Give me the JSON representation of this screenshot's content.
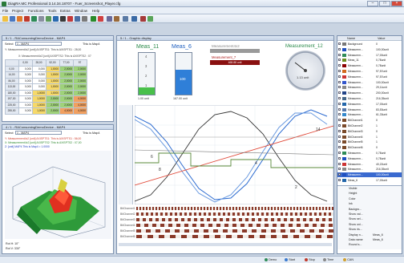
{
  "window": {
    "title": "DiagRA MC Professional 3.14.34.18707 - Fuer_Screenshot_Player.cfg"
  },
  "menu": [
    "File",
    "Project",
    "Functions",
    "Tools",
    "Extras",
    "Window",
    "Help"
  ],
  "work_page": "1 - Work page",
  "panel1": {
    "title": "5 / 1 - RAConsumingDemoDevice - MAP4",
    "select_label": "Select",
    "select_value": "1 - MAP4",
    "this_is": "This is Map4",
    "y_line": "Y: Measurement4x2 [unit] AXISPTS1: This is AXISPTS1 : 28,00",
    "x_line": "X: Measurement4x2 [unit] AXISPTS2: This is AXISPTS2 : 07",
    "header": [
      "",
      "0,00",
      "28,00",
      "52,00",
      "77,00",
      "97"
    ],
    "rows": [
      [
        "0,00",
        "0,000",
        "0,000",
        "1,0000",
        "2,0000",
        "2,0000"
      ],
      [
        "14,00",
        "0,000",
        "0,000",
        "1,0000",
        "2,0000",
        "2,0000"
      ],
      [
        "84,00",
        "0,000",
        "0,000",
        "1,0000",
        "2,0000",
        "2,0000"
      ],
      [
        "113,00",
        "0,000",
        "0,000",
        "1,0000",
        "2,0000",
        "2,0000"
      ],
      [
        "180,00",
        "0,000",
        "1,0000",
        "1,0000",
        "2,0000",
        "2,0000"
      ],
      [
        "197,00",
        "0,000",
        "1,0000",
        "2,0000",
        "2,0000",
        "4,0000"
      ],
      [
        "225,00",
        "0,000",
        "1,0000",
        "2,0000",
        "2,0000",
        "4,0000"
      ],
      [
        "255,00",
        "0,000",
        "1,0000",
        "2,0000",
        "4,0000",
        "4,0000"
      ]
    ]
  },
  "panel2": {
    "title": "4 / 1 - RAConsumingDemoDevice - MAP4",
    "select_label": "Select",
    "select_value": "1 - MAP4",
    "this_is": "This is Map4",
    "legend1": "Y: Measurement4x2 [unit] AXISPTS1: This is AXISPTS1 : 56,00",
    "legend2": "X: Measurement4x2 [unit] AXISPTS2: This is AXISPTS2 : 07,00",
    "legend3": "Z: [unit] MAP4 This is Map4 = 1.0000",
    "rot_h": "Rot H: 10°",
    "rot_v": "Rot V: 330°"
  },
  "graphic": {
    "title": "5 / 1 - Graphic display",
    "meas11": {
      "label": "Meas_11",
      "unit": "1.00 unit",
      "scale": [
        "4",
        "3",
        "2",
        "1"
      ],
      "fill": 0.17
    },
    "meas6": {
      "label": "Meas_6",
      "value": "100",
      "unit": "167.00 unit",
      "fill": 0.6
    },
    "meas4x2": {
      "label": "Measurement4x2",
      "value": "1"
    },
    "meas7": {
      "label": "Measurement_7",
      "value": "468.88 unit"
    },
    "meas12": {
      "label": "Measurement_12",
      "value": "1.13 unit"
    },
    "chart_nums": [
      "14",
      "8",
      "6",
      "4",
      "2"
    ],
    "bits": [
      "BitChannel1",
      "BitChannel2",
      "BitChannel3",
      "BitChannel4",
      "BitChannel5",
      "BitChannel6"
    ]
  },
  "signals": {
    "headers": [
      "Name",
      "Value"
    ],
    "rows": [
      {
        "name": "Background",
        "value": "0",
        "color": "#777777"
      },
      {
        "name": "Measurem...",
        "value": "100,00unit",
        "color": "#1f4fbf"
      },
      {
        "name": "Measurem...",
        "value": "17,00unit",
        "color": "#2e8b57"
      },
      {
        "name": "Meas_11",
        "value": "0,78unit",
        "color": "#6b8e23"
      },
      {
        "name": "Measurem...",
        "value": "0,78unit",
        "color": "#8b0000"
      },
      {
        "name": "Measurem...",
        "value": "97,57unit",
        "color": "#d2691e"
      },
      {
        "name": "Measurem...",
        "value": "97,57unit",
        "color": "#cc3333"
      },
      {
        "name": "Measurem...",
        "value": "100,00unit",
        "color": "#3355cc"
      },
      {
        "name": "Measurem...",
        "value": "29,11unit",
        "color": "#888888"
      },
      {
        "name": "Measurem...",
        "value": "200,00unit",
        "color": "#224488"
      },
      {
        "name": "Measurem...",
        "value": "216,35unit",
        "color": "#446688"
      },
      {
        "name": "Measurem...",
        "value": "17,00unit",
        "color": "#2266aa"
      },
      {
        "name": "Measurem...",
        "value": "83,53unit",
        "color": "#5577aa"
      },
      {
        "name": "Measurem...",
        "value": "61,33unit",
        "color": "#3388cc"
      },
      {
        "name": "BitChannel1",
        "value": "0",
        "color": "#7a4a2a"
      },
      {
        "name": "BitChannel2",
        "value": "1",
        "color": "#7a4a2a"
      },
      {
        "name": "BitChannel3",
        "value": "0",
        "color": "#7a4a2a"
      },
      {
        "name": "BitChannel4",
        "value": "1",
        "color": "#7a4a2a"
      },
      {
        "name": "BitChannel5",
        "value": "1",
        "color": "#7a4a2a"
      },
      {
        "name": "BitChannel6",
        "value": "0",
        "color": "#7a4a2a"
      },
      {
        "name": "Measurem...",
        "value": "0,78unit",
        "color": "#2e8b57"
      },
      {
        "name": "Measurem...",
        "value": "0,78unit",
        "color": "#1f4fbf"
      },
      {
        "name": "Measurem...",
        "value": "40,22unit",
        "color": "#cc3333"
      },
      {
        "name": "Measurem...",
        "value": "216,35unit",
        "color": "#888888"
      },
      {
        "name": "Measurem...",
        "value": "100,00unit",
        "color": "#1f4fbf"
      },
      {
        "name": "Meas_6",
        "value": "17,00unit",
        "color": "#2266aa"
      }
    ]
  },
  "props": {
    "rows": [
      {
        "k": "Visible",
        "v": ""
      },
      {
        "k": "Height",
        "v": ""
      },
      {
        "k": "Color",
        "v": ""
      },
      {
        "k": "Ink",
        "v": ""
      },
      {
        "k": "Backgro...",
        "v": ""
      },
      {
        "k": "Show val...",
        "v": ""
      },
      {
        "k": "Show sel...",
        "v": ""
      },
      {
        "k": "Show uni...",
        "v": ""
      },
      {
        "k": "Show ris...",
        "v": ""
      },
      {
        "k": "Display n...",
        "v": "Meas_6"
      },
      {
        "k": "Data name",
        "v": "Meas_6"
      },
      {
        "k": "Round s...",
        "v": ""
      }
    ]
  },
  "status": {
    "items": [
      "Demo",
      "Start",
      "Stop",
      "Time",
      "CAN"
    ]
  }
}
